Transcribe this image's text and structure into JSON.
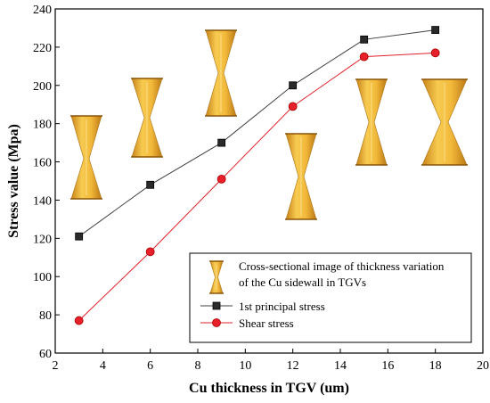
{
  "chart_data": {
    "type": "line",
    "xlabel": "Cu thickness in TGV (um)",
    "ylabel": "Stress value (Mpa)",
    "xlim": [
      2,
      20
    ],
    "ylim": [
      60,
      240
    ],
    "x_ticks": [
      2,
      4,
      6,
      8,
      10,
      12,
      14,
      16,
      18,
      20
    ],
    "y_ticks": [
      60,
      80,
      100,
      120,
      140,
      160,
      180,
      200,
      220,
      240
    ],
    "x": [
      3,
      6,
      9,
      12,
      15,
      18
    ],
    "series": [
      {
        "name": "1st principal stress",
        "values": [
          121,
          148,
          170,
          200,
          224,
          229
        ],
        "color": "#404040",
        "marker": "square"
      },
      {
        "name": "Shear stress",
        "values": [
          77,
          113,
          151,
          189,
          215,
          217
        ],
        "color": "#e0202a",
        "marker": "circle"
      }
    ],
    "legend": {
      "position": "bottom-right",
      "image_entry": "Cross-sectional image of thickness variation of the Cu sidewall in TGVs"
    },
    "grid": false,
    "inset_images": {
      "description_icon": "tgv-cross-section-icon",
      "colors": {
        "fill": "#e8a317",
        "light": "#f8d36a",
        "dark": "#b8740a"
      }
    }
  }
}
